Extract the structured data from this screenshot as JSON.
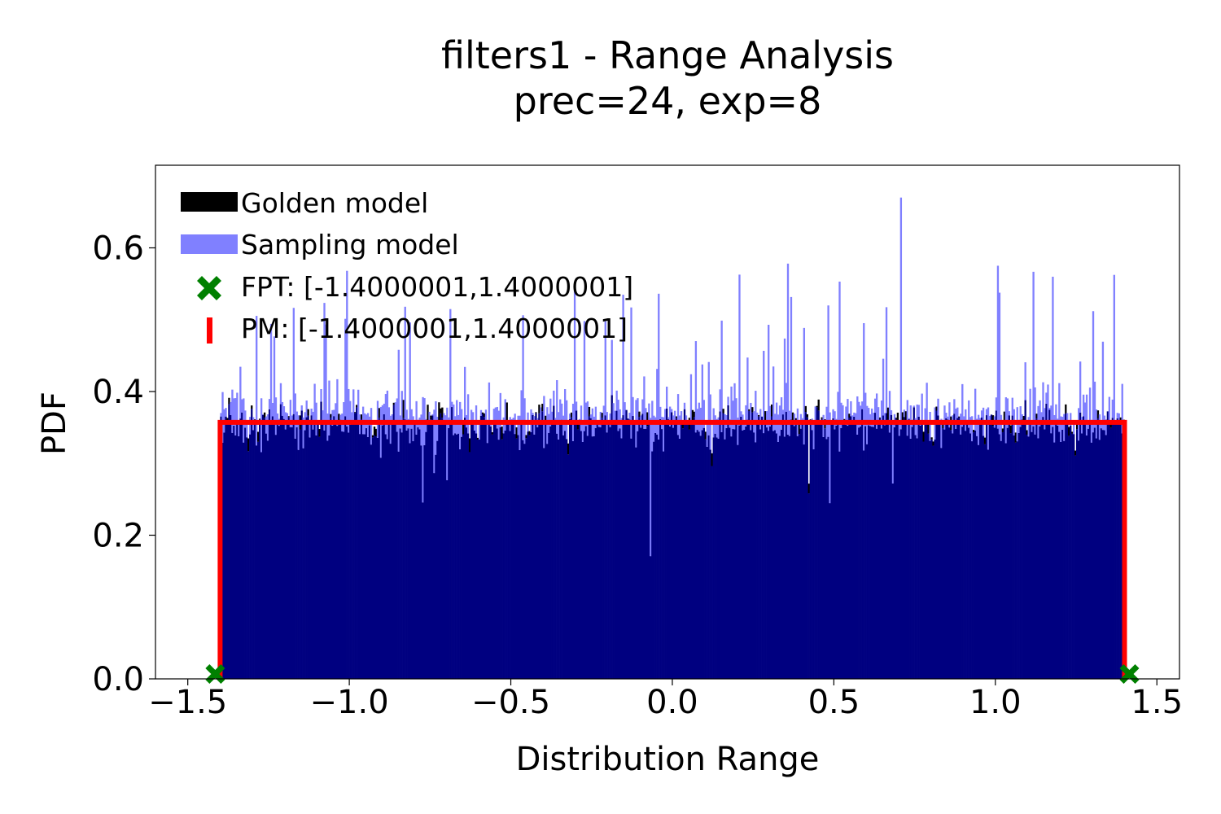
{
  "chart_data": {
    "type": "bar",
    "title_line1": "filters1 - Range Analysis",
    "title_line2": "prec=24, exp=8",
    "xlabel": "Distribution Range",
    "ylabel": "PDF",
    "xlim": [
      -1.6,
      1.57
    ],
    "ylim": [
      0,
      0.715
    ],
    "xticks": [
      -1.5,
      -1.0,
      -0.5,
      0.0,
      0.5,
      1.0,
      1.5
    ],
    "xtick_labels": [
      "−1.5",
      "−1.0",
      "−0.5",
      "0.0",
      "0.5",
      "1.0",
      "1.5"
    ],
    "yticks": [
      0.0,
      0.2,
      0.4,
      0.6
    ],
    "ytick_labels": [
      "0.0",
      "0.2",
      "0.4",
      "0.6"
    ],
    "grid": false,
    "legend_position": "top-left",
    "bin_range": [
      -1.4,
      1.4
    ],
    "series": [
      {
        "name": "Golden model",
        "kind": "histogram",
        "color": "#000000",
        "mean_density": 0.357,
        "typical_range": [
          0.29,
          0.39
        ],
        "min_observed": 0.11
      },
      {
        "name": "Sampling model",
        "kind": "histogram",
        "color": "#8080ff",
        "overlap_color": "#000080",
        "mean_density": 0.357,
        "typical_range": [
          0.31,
          0.48
        ],
        "max_observed": 0.67
      },
      {
        "name": "FPT: [-1.4000001,1.4000001]",
        "kind": "marker",
        "marker": "X",
        "color": "#008000",
        "points": [
          [
            -1.4000001,
            0.0
          ],
          [
            1.4000001,
            0.0
          ]
        ]
      },
      {
        "name": "PM: [-1.4000001,1.4000001]",
        "kind": "line",
        "color": "#ff0000",
        "points": [
          [
            -1.4000001,
            0.0
          ],
          [
            -1.4000001,
            0.357
          ],
          [
            1.4000001,
            0.357
          ],
          [
            1.4000001,
            0.0
          ]
        ]
      }
    ]
  }
}
